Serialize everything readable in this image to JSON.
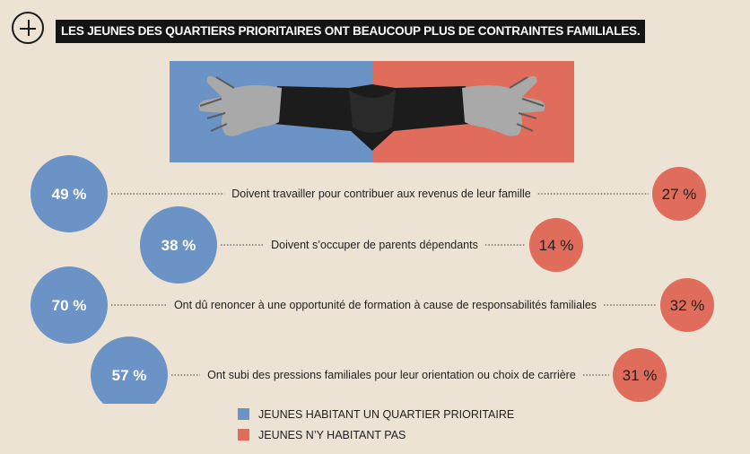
{
  "header": {
    "title": "LES JEUNES DES QUARTIERS PRIORITAIRES ONT BEAUCOUP PLUS DE CONTRAINTES FAMILIALES."
  },
  "colors": {
    "priority": "#6b93c6",
    "non_priority": "#e06d5b",
    "background": "#ede3d5"
  },
  "icons": {
    "header": "plus-circle-icon",
    "photo": "pointing-hands-photo"
  },
  "chart_data": {
    "type": "bubble-comparison",
    "title": "LES JEUNES DES QUARTIERS PRIORITAIRES ONT BEAUCOUP PLUS DE CONTRAINTES FAMILIALES.",
    "categories": [
      "Doivent travailler pour contribuer aux revenus de leur famille",
      "Doivent s’occuper de parents dépendants",
      "Ont dû renoncer à une opportunité de formation à cause de responsabilités familiales",
      "Ont subi des pressions familiales pour leur orientation ou choix de carrière"
    ],
    "series": [
      {
        "name": "JEUNES HABITANT UN QUARTIER PRIORITAIRE",
        "values": [
          49,
          38,
          70,
          57
        ],
        "labels": [
          "49 %",
          "38 %",
          "70 %",
          "57 %"
        ]
      },
      {
        "name": "JEUNES N’Y HABITANT PAS",
        "values": [
          27,
          14,
          32,
          31
        ],
        "labels": [
          "27 %",
          "14 %",
          "32 %",
          "31 %"
        ]
      }
    ],
    "unit": "%"
  },
  "legend": {
    "items": [
      {
        "label": "JEUNES HABITANT UN QUARTIER PRIORITAIRE"
      },
      {
        "label": "JEUNES N’Y HABITANT PAS"
      }
    ]
  }
}
